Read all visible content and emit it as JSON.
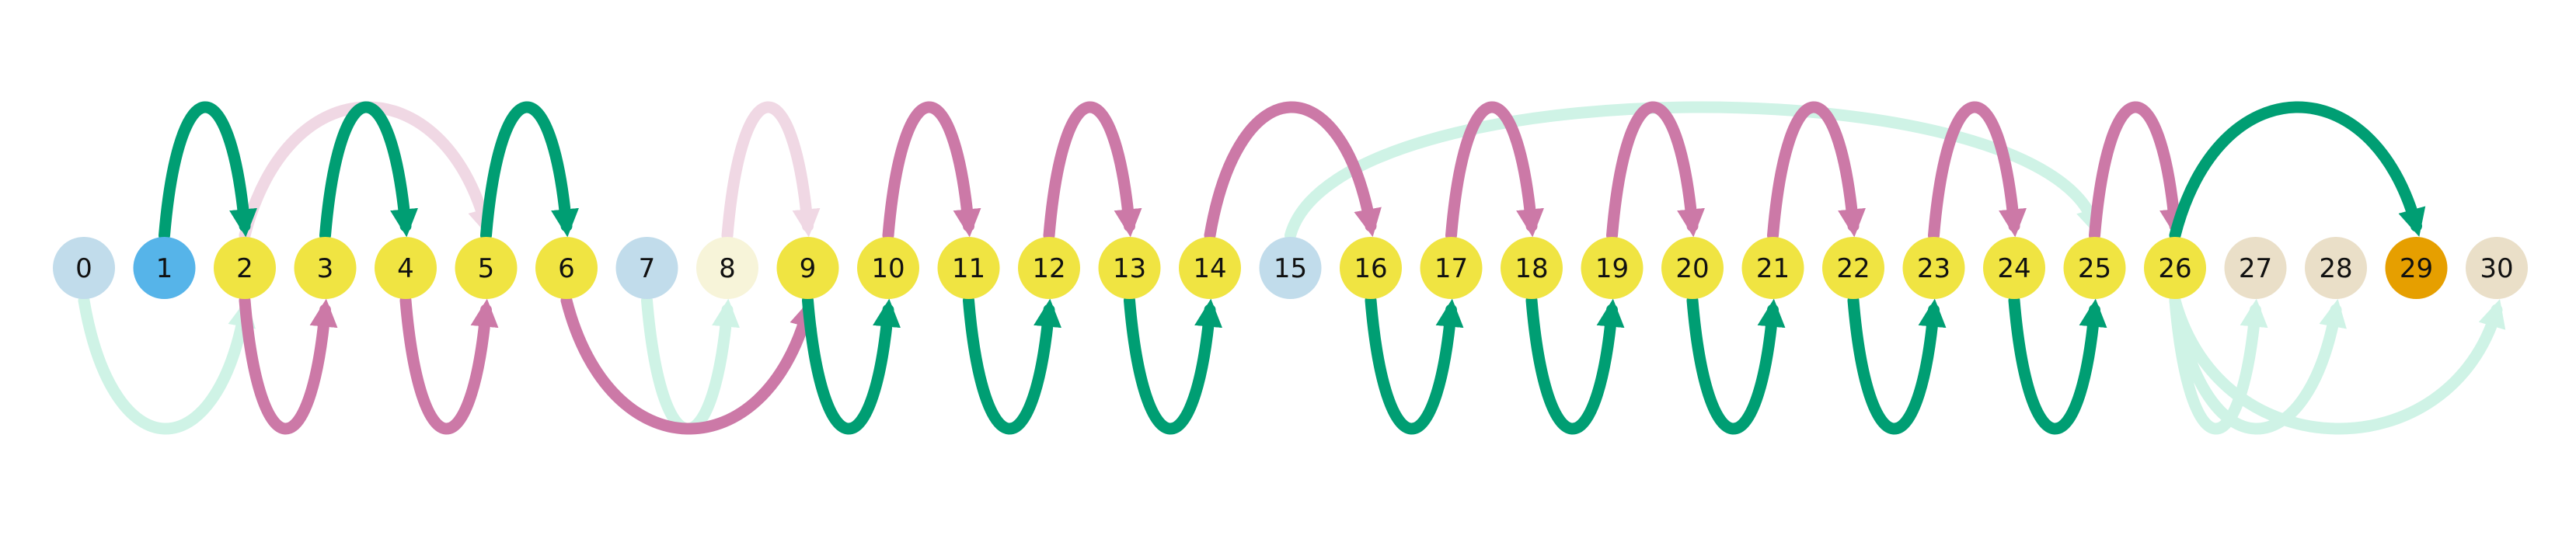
{
  "colors": {
    "green": "#009E73",
    "pink": "#CC79A7",
    "pink_faint": "#F0D8E4",
    "mint_faint": "#CFF3E6",
    "node_light_blue": "#C1DCEB",
    "node_blue": "#56B4E9",
    "node_yellow": "#F0E442",
    "node_cream": "#F7F4D9",
    "node_beige": "#EADFC8",
    "node_orange": "#E69F00"
  },
  "nodes": [
    {
      "label": "0",
      "fill": "node_light_blue"
    },
    {
      "label": "1",
      "fill": "node_blue"
    },
    {
      "label": "2",
      "fill": "node_yellow"
    },
    {
      "label": "3",
      "fill": "node_yellow"
    },
    {
      "label": "4",
      "fill": "node_yellow"
    },
    {
      "label": "5",
      "fill": "node_yellow"
    },
    {
      "label": "6",
      "fill": "node_yellow"
    },
    {
      "label": "7",
      "fill": "node_light_blue"
    },
    {
      "label": "8",
      "fill": "node_cream"
    },
    {
      "label": "9",
      "fill": "node_yellow"
    },
    {
      "label": "10",
      "fill": "node_yellow"
    },
    {
      "label": "11",
      "fill": "node_yellow"
    },
    {
      "label": "12",
      "fill": "node_yellow"
    },
    {
      "label": "13",
      "fill": "node_yellow"
    },
    {
      "label": "14",
      "fill": "node_yellow"
    },
    {
      "label": "15",
      "fill": "node_light_blue"
    },
    {
      "label": "16",
      "fill": "node_yellow"
    },
    {
      "label": "17",
      "fill": "node_yellow"
    },
    {
      "label": "18",
      "fill": "node_yellow"
    },
    {
      "label": "19",
      "fill": "node_yellow"
    },
    {
      "label": "20",
      "fill": "node_yellow"
    },
    {
      "label": "21",
      "fill": "node_yellow"
    },
    {
      "label": "22",
      "fill": "node_yellow"
    },
    {
      "label": "23",
      "fill": "node_yellow"
    },
    {
      "label": "24",
      "fill": "node_yellow"
    },
    {
      "label": "25",
      "fill": "node_yellow"
    },
    {
      "label": "26",
      "fill": "node_yellow"
    },
    {
      "label": "27",
      "fill": "node_beige"
    },
    {
      "label": "28",
      "fill": "node_beige"
    },
    {
      "label": "29",
      "fill": "node_orange"
    },
    {
      "label": "30",
      "fill": "node_beige"
    }
  ],
  "arcs": [
    {
      "from": 0,
      "to": 2,
      "side": "below",
      "color": "mint_faint"
    },
    {
      "from": 1,
      "to": 2,
      "side": "above",
      "color": "green"
    },
    {
      "from": 2,
      "to": 3,
      "side": "below",
      "color": "pink"
    },
    {
      "from": 2,
      "to": 5,
      "side": "above",
      "color": "pink_faint"
    },
    {
      "from": 3,
      "to": 4,
      "side": "above",
      "color": "green"
    },
    {
      "from": 4,
      "to": 5,
      "side": "below",
      "color": "pink"
    },
    {
      "from": 5,
      "to": 6,
      "side": "above",
      "color": "green"
    },
    {
      "from": 6,
      "to": 9,
      "side": "below",
      "color": "pink"
    },
    {
      "from": 7,
      "to": 8,
      "side": "below",
      "color": "mint_faint"
    },
    {
      "from": 8,
      "to": 9,
      "side": "above",
      "color": "pink_faint"
    },
    {
      "from": 9,
      "to": 10,
      "side": "below",
      "color": "green"
    },
    {
      "from": 10,
      "to": 11,
      "side": "above",
      "color": "pink"
    },
    {
      "from": 11,
      "to": 12,
      "side": "below",
      "color": "green"
    },
    {
      "from": 12,
      "to": 13,
      "side": "above",
      "color": "pink"
    },
    {
      "from": 13,
      "to": 14,
      "side": "below",
      "color": "green"
    },
    {
      "from": 14,
      "to": 16,
      "side": "above",
      "color": "pink"
    },
    {
      "from": 15,
      "to": 25,
      "side": "above",
      "color": "mint_faint"
    },
    {
      "from": 16,
      "to": 17,
      "side": "below",
      "color": "green"
    },
    {
      "from": 17,
      "to": 18,
      "side": "above",
      "color": "pink"
    },
    {
      "from": 18,
      "to": 19,
      "side": "below",
      "color": "green"
    },
    {
      "from": 19,
      "to": 20,
      "side": "above",
      "color": "pink"
    },
    {
      "from": 20,
      "to": 21,
      "side": "below",
      "color": "green"
    },
    {
      "from": 21,
      "to": 22,
      "side": "above",
      "color": "pink"
    },
    {
      "from": 22,
      "to": 23,
      "side": "below",
      "color": "green"
    },
    {
      "from": 23,
      "to": 24,
      "side": "above",
      "color": "pink"
    },
    {
      "from": 24,
      "to": 25,
      "side": "below",
      "color": "green"
    },
    {
      "from": 25,
      "to": 26,
      "side": "above",
      "color": "pink"
    },
    {
      "from": 26,
      "to": 29,
      "side": "above",
      "color": "green"
    },
    {
      "from": 26,
      "to": 27,
      "side": "below",
      "color": "mint_faint"
    },
    {
      "from": 26,
      "to": 28,
      "side": "below",
      "color": "mint_faint"
    },
    {
      "from": 26,
      "to": 30,
      "side": "below",
      "color": "mint_faint"
    }
  ]
}
